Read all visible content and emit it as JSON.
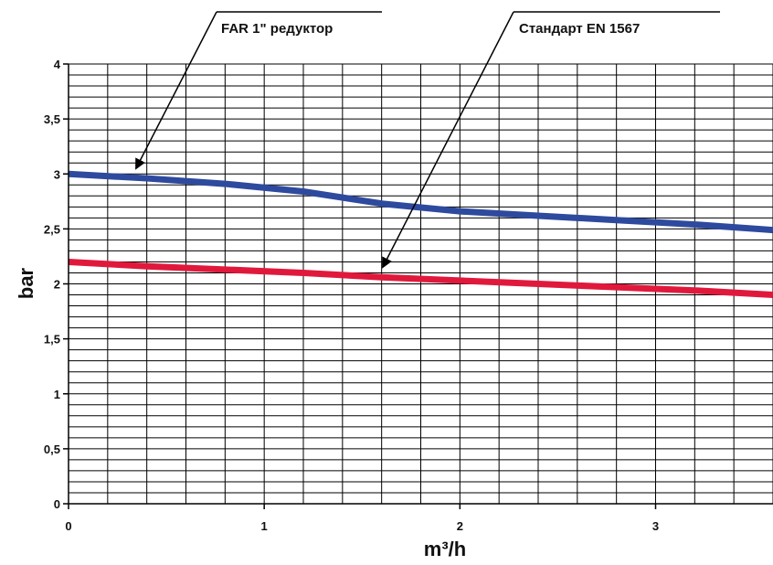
{
  "chart_data": {
    "type": "line",
    "xlabel": "m³/h",
    "ylabel": "bar",
    "xlim": [
      0,
      3.6
    ],
    "ylim": [
      0,
      4
    ],
    "x_ticks": [
      0,
      1,
      2,
      3
    ],
    "x_tick_labels": [
      "0",
      "1",
      "2",
      "3"
    ],
    "y_ticks": [
      0,
      0.5,
      1,
      1.5,
      2,
      2.5,
      3,
      3.5,
      4
    ],
    "y_tick_labels": [
      "0",
      "0,5",
      "1",
      "1,5",
      "2",
      "2,5",
      "3",
      "3,5",
      "4"
    ],
    "grid": true,
    "series": [
      {
        "name": "FAR 1\" редуктор",
        "color": "#2e4a9e",
        "x": [
          0,
          0.4,
          0.8,
          1.2,
          1.6,
          2.0,
          2.4,
          2.8,
          3.2,
          3.6
        ],
        "y": [
          3.0,
          2.96,
          2.91,
          2.84,
          2.73,
          2.66,
          2.62,
          2.58,
          2.54,
          2.49
        ]
      },
      {
        "name": "Стандарт EN 1567",
        "color": "#e0193c",
        "x": [
          0,
          0.4,
          0.8,
          1.2,
          1.6,
          2.0,
          2.4,
          2.8,
          3.2,
          3.6
        ],
        "y": [
          2.2,
          2.16,
          2.13,
          2.1,
          2.06,
          2.03,
          2.0,
          1.97,
          1.94,
          1.9
        ]
      }
    ],
    "annotations": [
      {
        "text": "FAR 1\" редуктор",
        "points_to": {
          "x": 0.35,
          "y": 2.98
        }
      },
      {
        "text": "Стандарт EN 1567",
        "points_to": {
          "x": 1.58,
          "y": 2.06
        }
      }
    ]
  }
}
